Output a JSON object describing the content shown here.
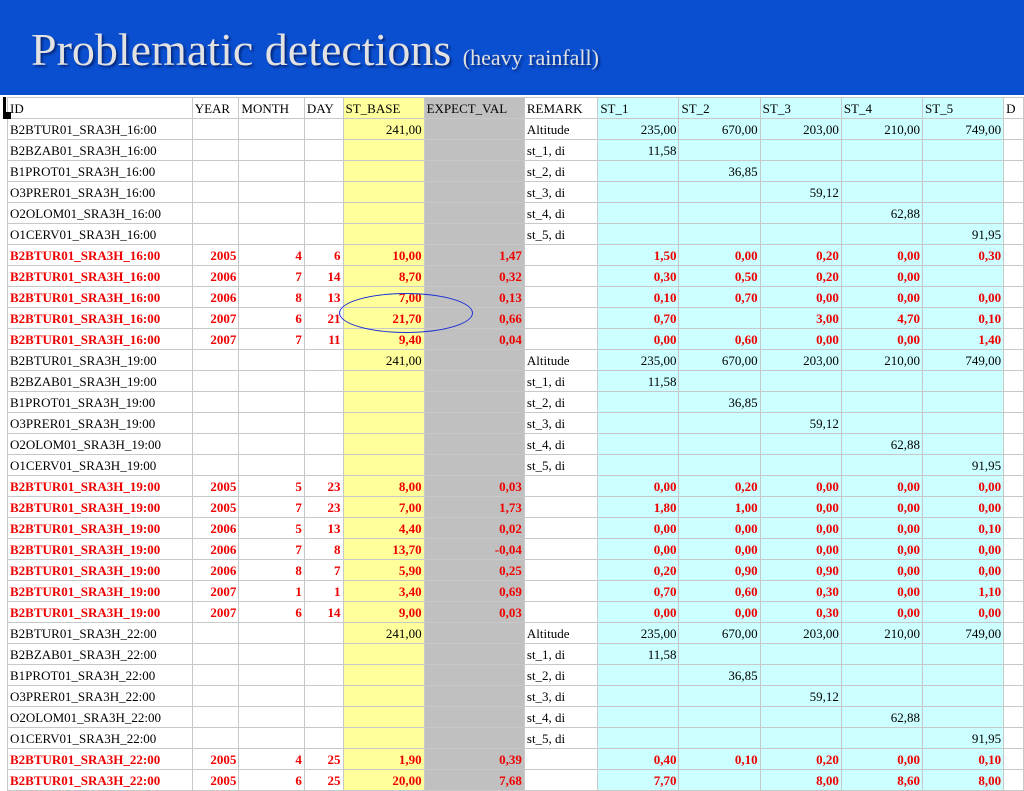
{
  "slide": {
    "title": "Problematic detections",
    "subtitle": "(heavy rainfall)"
  },
  "colors": {
    "title_bar": "#0a4fd0",
    "st_base_column": "#ffff9c",
    "expect_val_column": "#c0c0c0",
    "st_columns": "#ccffff",
    "highlight_text": "#ee0000",
    "annotation_ellipse": "#1a2fd6"
  },
  "table": {
    "columns": [
      "ID",
      "YEAR",
      "MONTH",
      "DAY",
      "ST_BASE",
      "EXPECT_VAL",
      "REMARK",
      "ST_1",
      "ST_2",
      "ST_3",
      "ST_4",
      "ST_5",
      "D"
    ],
    "rows": [
      {
        "hl": false,
        "cells": [
          "B2BTUR01_SRA3H_16:00",
          "",
          "",
          "",
          "241,00",
          "",
          "Altitude",
          "235,00",
          "670,00",
          "203,00",
          "210,00",
          "749,00",
          ""
        ]
      },
      {
        "hl": false,
        "cells": [
          "B2BZAB01_SRA3H_16:00",
          "",
          "",
          "",
          "",
          "",
          "st_1, di",
          "11,58",
          "",
          "",
          "",
          "",
          ""
        ]
      },
      {
        "hl": false,
        "cells": [
          "B1PROT01_SRA3H_16:00",
          "",
          "",
          "",
          "",
          "",
          "st_2, di",
          "",
          "36,85",
          "",
          "",
          "",
          ""
        ]
      },
      {
        "hl": false,
        "cells": [
          "O3PRER01_SRA3H_16:00",
          "",
          "",
          "",
          "",
          "",
          "st_3, di",
          "",
          "",
          "59,12",
          "",
          "",
          ""
        ]
      },
      {
        "hl": false,
        "cells": [
          "O2OLOM01_SRA3H_16:00",
          "",
          "",
          "",
          "",
          "",
          "st_4, di",
          "",
          "",
          "",
          "62,88",
          "",
          ""
        ]
      },
      {
        "hl": false,
        "cells": [
          "O1CERV01_SRA3H_16:00",
          "",
          "",
          "",
          "",
          "",
          "st_5, di",
          "",
          "",
          "",
          "",
          "91,95",
          ""
        ]
      },
      {
        "hl": true,
        "cells": [
          "B2BTUR01_SRA3H_16:00",
          "2005",
          "4",
          "6",
          "10,00",
          "1,47",
          "",
          "1,50",
          "0,00",
          "0,20",
          "0,00",
          "0,30",
          ""
        ]
      },
      {
        "hl": true,
        "cells": [
          "B2BTUR01_SRA3H_16:00",
          "2006",
          "7",
          "14",
          "8,70",
          "0,32",
          "",
          "0,30",
          "0,50",
          "0,20",
          "0,00",
          "",
          ""
        ]
      },
      {
        "hl": true,
        "cells": [
          "B2BTUR01_SRA3H_16:00",
          "2006",
          "8",
          "13",
          "7,00",
          "0,13",
          "",
          "0,10",
          "0,70",
          "0,00",
          "0,00",
          "0,00",
          ""
        ]
      },
      {
        "hl": true,
        "cells": [
          "B2BTUR01_SRA3H_16:00",
          "2007",
          "6",
          "21",
          "21,70",
          "0,66",
          "",
          "0,70",
          "",
          "3,00",
          "4,70",
          "0,10",
          ""
        ]
      },
      {
        "hl": true,
        "cells": [
          "B2BTUR01_SRA3H_16:00",
          "2007",
          "7",
          "11",
          "9,40",
          "0,04",
          "",
          "0,00",
          "0,60",
          "0,00",
          "0,00",
          "1,40",
          ""
        ]
      },
      {
        "hl": false,
        "cells": [
          "B2BTUR01_SRA3H_19:00",
          "",
          "",
          "",
          "241,00",
          "",
          "Altitude",
          "235,00",
          "670,00",
          "203,00",
          "210,00",
          "749,00",
          ""
        ]
      },
      {
        "hl": false,
        "cells": [
          "B2BZAB01_SRA3H_19:00",
          "",
          "",
          "",
          "",
          "",
          "st_1, di",
          "11,58",
          "",
          "",
          "",
          "",
          ""
        ]
      },
      {
        "hl": false,
        "cells": [
          "B1PROT01_SRA3H_19:00",
          "",
          "",
          "",
          "",
          "",
          "st_2, di",
          "",
          "36,85",
          "",
          "",
          "",
          ""
        ]
      },
      {
        "hl": false,
        "cells": [
          "O3PRER01_SRA3H_19:00",
          "",
          "",
          "",
          "",
          "",
          "st_3, di",
          "",
          "",
          "59,12",
          "",
          "",
          ""
        ]
      },
      {
        "hl": false,
        "cells": [
          "O2OLOM01_SRA3H_19:00",
          "",
          "",
          "",
          "",
          "",
          "st_4, di",
          "",
          "",
          "",
          "62,88",
          "",
          ""
        ]
      },
      {
        "hl": false,
        "cells": [
          "O1CERV01_SRA3H_19:00",
          "",
          "",
          "",
          "",
          "",
          "st_5, di",
          "",
          "",
          "",
          "",
          "91,95",
          ""
        ]
      },
      {
        "hl": true,
        "cells": [
          "B2BTUR01_SRA3H_19:00",
          "2005",
          "5",
          "23",
          "8,00",
          "0,03",
          "",
          "0,00",
          "0,20",
          "0,00",
          "0,00",
          "0,00",
          ""
        ]
      },
      {
        "hl": true,
        "cells": [
          "B2BTUR01_SRA3H_19:00",
          "2005",
          "7",
          "23",
          "7,00",
          "1,73",
          "",
          "1,80",
          "1,00",
          "0,00",
          "0,00",
          "0,00",
          ""
        ]
      },
      {
        "hl": true,
        "cells": [
          "B2BTUR01_SRA3H_19:00",
          "2006",
          "5",
          "13",
          "4,40",
          "0,02",
          "",
          "0,00",
          "0,00",
          "0,00",
          "0,00",
          "0,10",
          ""
        ]
      },
      {
        "hl": true,
        "cells": [
          "B2BTUR01_SRA3H_19:00",
          "2006",
          "7",
          "8",
          "13,70",
          "-0,04",
          "",
          "0,00",
          "0,00",
          "0,00",
          "0,00",
          "0,00",
          ""
        ]
      },
      {
        "hl": true,
        "cells": [
          "B2BTUR01_SRA3H_19:00",
          "2006",
          "8",
          "7",
          "5,90",
          "0,25",
          "",
          "0,20",
          "0,90",
          "0,90",
          "0,00",
          "0,00",
          ""
        ]
      },
      {
        "hl": true,
        "cells": [
          "B2BTUR01_SRA3H_19:00",
          "2007",
          "1",
          "1",
          "3,40",
          "0,69",
          "",
          "0,70",
          "0,60",
          "0,30",
          "0,00",
          "1,10",
          ""
        ]
      },
      {
        "hl": true,
        "cells": [
          "B2BTUR01_SRA3H_19:00",
          "2007",
          "6",
          "14",
          "9,00",
          "0,03",
          "",
          "0,00",
          "0,00",
          "0,30",
          "0,00",
          "0,00",
          ""
        ]
      },
      {
        "hl": false,
        "cells": [
          "B2BTUR01_SRA3H_22:00",
          "",
          "",
          "",
          "241,00",
          "",
          "Altitude",
          "235,00",
          "670,00",
          "203,00",
          "210,00",
          "749,00",
          ""
        ]
      },
      {
        "hl": false,
        "cells": [
          "B2BZAB01_SRA3H_22:00",
          "",
          "",
          "",
          "",
          "",
          "st_1, di",
          "11,58",
          "",
          "",
          "",
          "",
          ""
        ]
      },
      {
        "hl": false,
        "cells": [
          "B1PROT01_SRA3H_22:00",
          "",
          "",
          "",
          "",
          "",
          "st_2, di",
          "",
          "36,85",
          "",
          "",
          "",
          ""
        ]
      },
      {
        "hl": false,
        "cells": [
          "O3PRER01_SRA3H_22:00",
          "",
          "",
          "",
          "",
          "",
          "st_3, di",
          "",
          "",
          "59,12",
          "",
          "",
          ""
        ]
      },
      {
        "hl": false,
        "cells": [
          "O2OLOM01_SRA3H_22:00",
          "",
          "",
          "",
          "",
          "",
          "st_4, di",
          "",
          "",
          "",
          "62,88",
          "",
          ""
        ]
      },
      {
        "hl": false,
        "cells": [
          "O1CERV01_SRA3H_22:00",
          "",
          "",
          "",
          "",
          "",
          "st_5, di",
          "",
          "",
          "",
          "",
          "91,95",
          ""
        ]
      },
      {
        "hl": true,
        "cells": [
          "B2BTUR01_SRA3H_22:00",
          "2005",
          "4",
          "25",
          "1,90",
          "0,39",
          "",
          "0,40",
          "0,10",
          "0,20",
          "0,00",
          "0,10",
          ""
        ]
      },
      {
        "hl": true,
        "cells": [
          "B2BTUR01_SRA3H_22:00",
          "2005",
          "6",
          "25",
          "20,00",
          "7,68",
          "",
          "7,70",
          "",
          "8,00",
          "8,60",
          "8,00",
          ""
        ]
      }
    ]
  }
}
